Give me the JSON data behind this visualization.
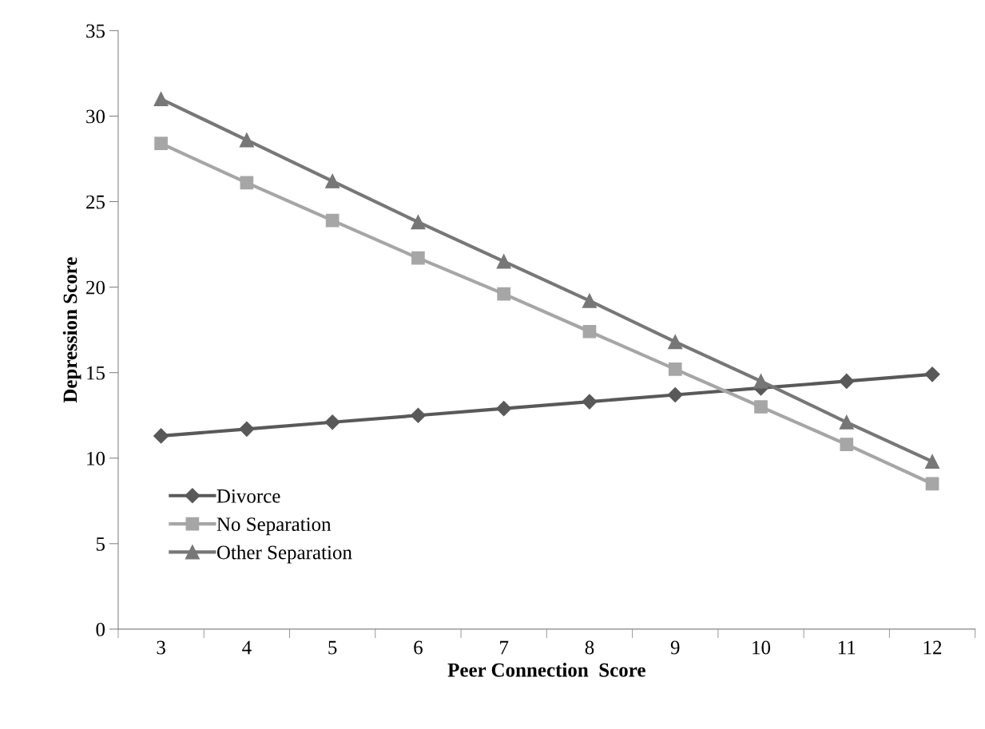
{
  "chart_data": {
    "type": "line",
    "xlabel": "Peer Connection  Score",
    "ylabel": "Depression Score",
    "categories": [
      "3",
      "4",
      "5",
      "6",
      "7",
      "8",
      "9",
      "10",
      "11",
      "12"
    ],
    "series": [
      {
        "name": "Divorce",
        "color": "#595959",
        "marker": "diamond",
        "values": [
          11.3,
          11.7,
          12.1,
          12.5,
          12.9,
          13.3,
          13.7,
          14.1,
          14.5,
          14.9
        ]
      },
      {
        "name": "No Separation",
        "color": "#a6a6a6",
        "marker": "square",
        "values": [
          28.4,
          26.1,
          23.9,
          21.7,
          19.6,
          17.4,
          15.2,
          13.0,
          10.8,
          8.5
        ]
      },
      {
        "name": "Other Separation",
        "color": "#777777",
        "marker": "triangle",
        "values": [
          31.0,
          28.6,
          26.2,
          23.8,
          21.5,
          19.2,
          16.8,
          14.5,
          12.1,
          9.8
        ]
      }
    ],
    "ylim": [
      0,
      35
    ],
    "yticks": [
      0,
      5,
      10,
      15,
      20,
      25,
      30,
      35
    ],
    "grid": false,
    "legend": "bottom left",
    "line_style": "solid"
  }
}
